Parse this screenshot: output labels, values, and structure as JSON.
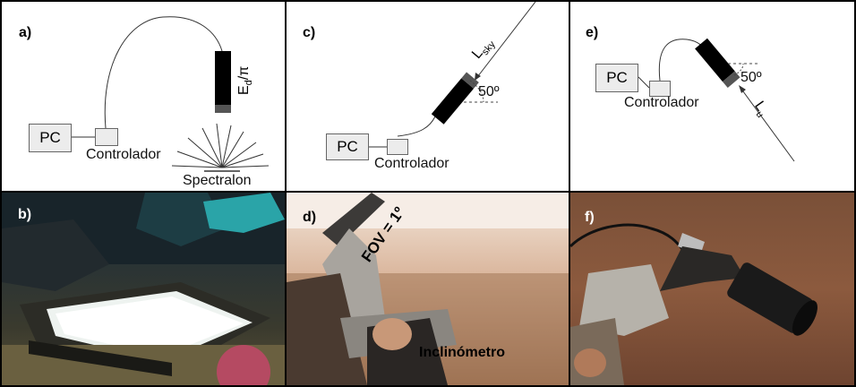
{
  "panels": {
    "a": {
      "label": "a)",
      "pc": "PC",
      "controller": "Controlador",
      "measure": "E",
      "measure_sub": "d",
      "measure_suffix": "/π",
      "target": "Spectralon"
    },
    "c": {
      "label": "c)",
      "pc": "PC",
      "controller": "Controlador",
      "radiance": "L",
      "radiance_sub": "sky",
      "angle": "50º"
    },
    "e": {
      "label": "e)",
      "pc": "PC",
      "controller": "Controlador",
      "radiance": "L",
      "radiance_sub": "u",
      "angle": "50º"
    },
    "b": {
      "label": "b)"
    },
    "d": {
      "label": "d)",
      "fov": "FOV = 1º",
      "inclinometer": "Inclinómetro"
    },
    "f": {
      "label": "f)"
    }
  }
}
